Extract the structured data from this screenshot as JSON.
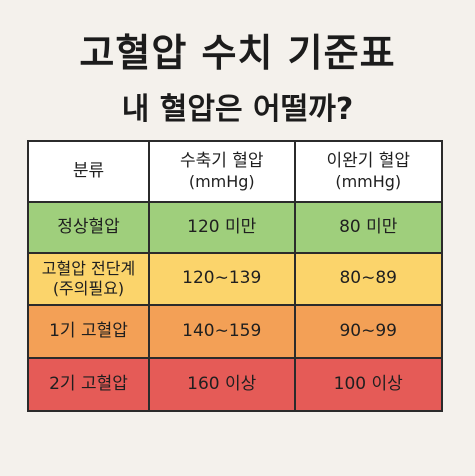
{
  "title": "고혈압 수치 기준표",
  "subtitle": "내 혈압은 어떨까?",
  "table": {
    "headers": [
      {
        "label": "분류",
        "unit": ""
      },
      {
        "label": "수축기 혈압",
        "unit": "(mmHg)"
      },
      {
        "label": "이완기 혈압",
        "unit": "(mmHg)"
      }
    ],
    "rows": [
      {
        "category": "정상혈압",
        "category_note": "",
        "systolic": "120 미만",
        "diastolic": "80 미만",
        "color": "#9fcf7c"
      },
      {
        "category": "고혈압 전단계",
        "category_note": "(주의필요)",
        "systolic": "120∼139",
        "diastolic": "80∼89",
        "color": "#fbd46b"
      },
      {
        "category": "1기 고혈압",
        "category_note": "",
        "systolic": "140∼159",
        "diastolic": "90∼99",
        "color": "#f3a056"
      },
      {
        "category": "2기 고혈압",
        "category_note": "",
        "systolic": "160 이상",
        "diastolic": "100 이상",
        "color": "#e55b57"
      }
    ]
  }
}
